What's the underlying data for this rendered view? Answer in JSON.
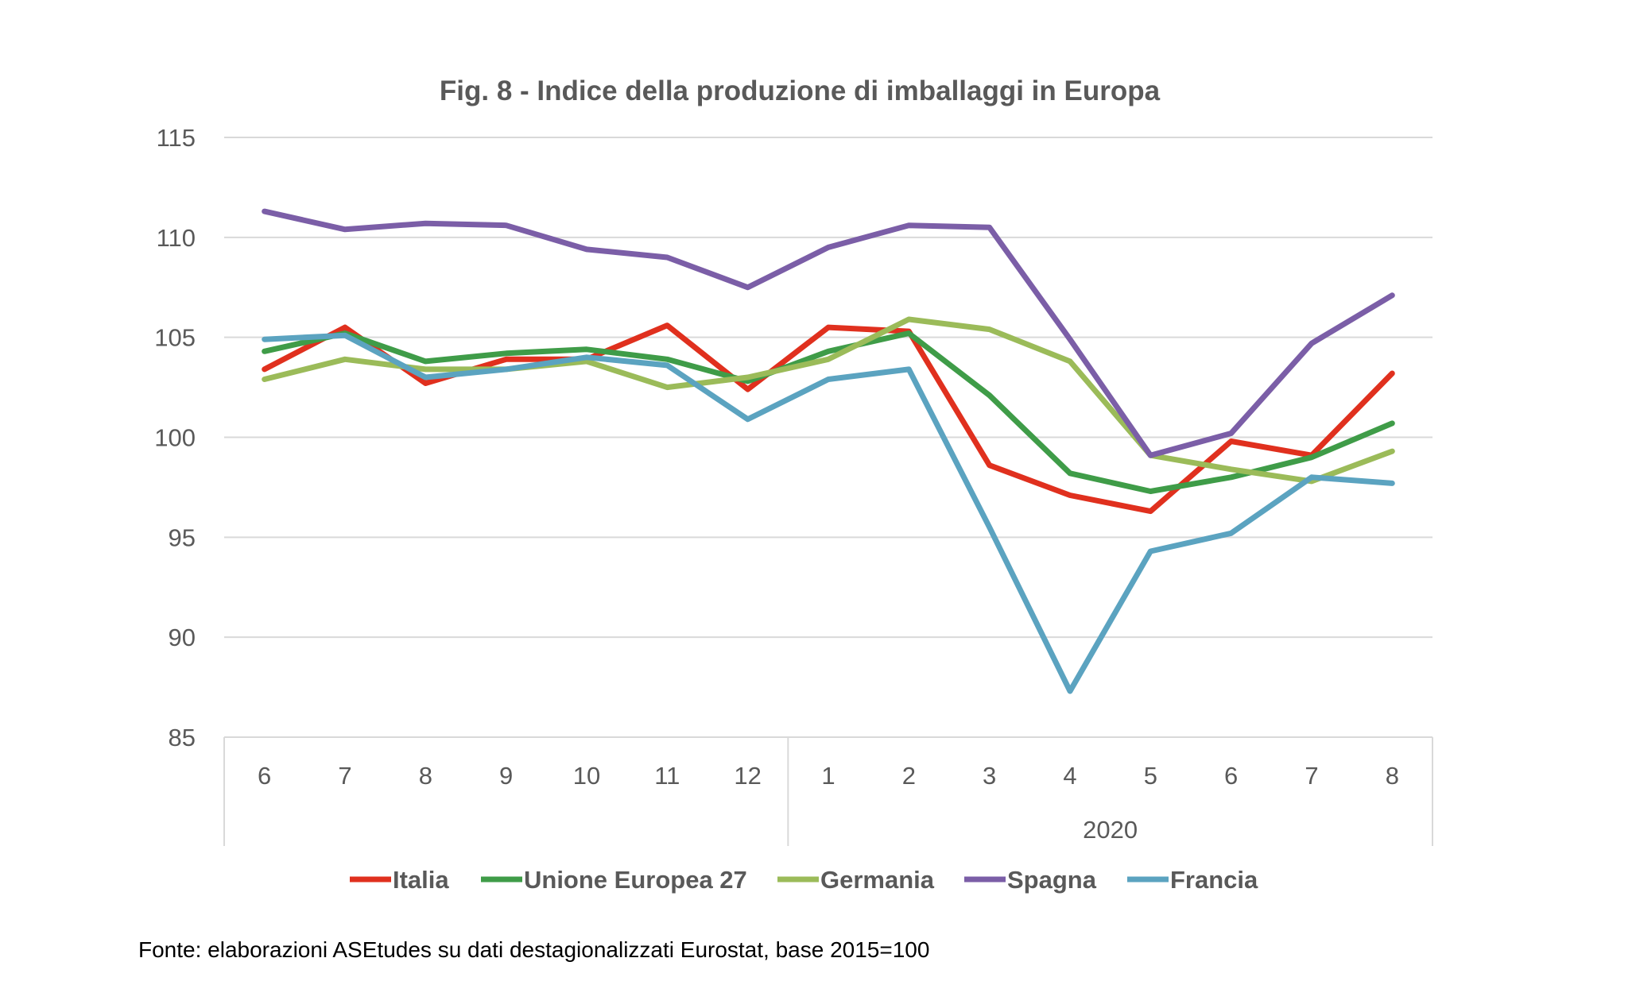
{
  "chart_data": {
    "type": "line",
    "title": "Fig. 8 - Indice della produzione di imballaggi in Europa",
    "categories": [
      "6",
      "7",
      "8",
      "9",
      "10",
      "11",
      "12",
      "1",
      "2",
      "3",
      "4",
      "5",
      "6",
      "7",
      "8"
    ],
    "category_groups": [
      {
        "label": "",
        "start": 0,
        "end": 6
      },
      {
        "label": "2020",
        "start": 7,
        "end": 14
      }
    ],
    "ylim": [
      85,
      115
    ],
    "yticks": [
      85,
      90,
      95,
      100,
      105,
      110,
      115
    ],
    "grid": true,
    "legend_position": "bottom",
    "series": [
      {
        "name": "Italia",
        "color": "#E0301E",
        "values": [
          103.4,
          105.5,
          102.7,
          103.9,
          103.9,
          105.6,
          102.4,
          105.5,
          105.3,
          98.6,
          97.1,
          96.3,
          99.8,
          99.1,
          103.2
        ]
      },
      {
        "name": "Unione Europea 27",
        "color": "#3F9C48",
        "values": [
          104.3,
          105.2,
          103.8,
          104.2,
          104.4,
          103.9,
          102.8,
          104.3,
          105.2,
          102.1,
          98.2,
          97.3,
          98.0,
          99.0,
          100.7
        ]
      },
      {
        "name": "Germania",
        "color": "#9BBB59",
        "values": [
          102.9,
          103.9,
          103.4,
          103.4,
          103.8,
          102.5,
          103.0,
          103.9,
          105.9,
          105.4,
          103.8,
          99.1,
          98.4,
          97.8,
          99.3
        ]
      },
      {
        "name": "Spagna",
        "color": "#7B5EA7",
        "values": [
          111.3,
          110.4,
          110.7,
          110.6,
          109.4,
          109.0,
          107.5,
          109.5,
          110.6,
          110.5,
          104.9,
          99.1,
          100.2,
          104.7,
          107.1
        ]
      },
      {
        "name": "Francia",
        "color": "#5BA3C0",
        "values": [
          104.9,
          105.1,
          103.0,
          103.4,
          104.0,
          103.6,
          100.9,
          102.9,
          103.4,
          95.5,
          87.3,
          94.3,
          95.2,
          98.0,
          97.7
        ]
      }
    ]
  },
  "source_note": "Fonte: elaborazioni ASEtudes su dati destagionalizzati Eurostat, base 2015=100"
}
